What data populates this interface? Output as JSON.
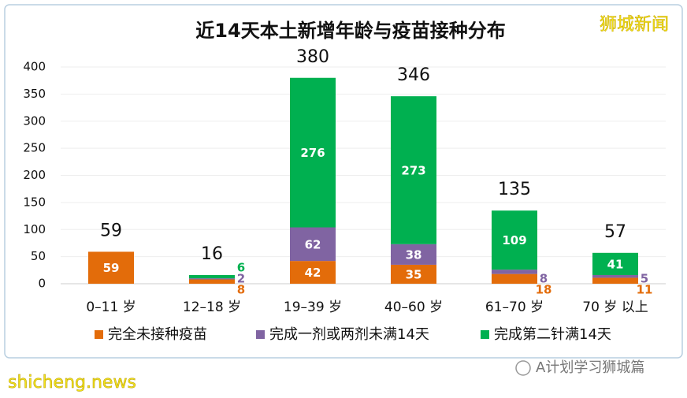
{
  "chart_data": {
    "type": "stacked_bar",
    "title": "近14天本土新增年龄与疫苗接种分布",
    "watermark": "狮城新闻",
    "footer_left": "shicheng.news",
    "footer_right": "A计划学习狮城篇",
    "categories": [
      "0–11 岁",
      "12–18 岁",
      "19–39 岁",
      "40–60 岁",
      "61–70 岁",
      "70 岁 以上"
    ],
    "series": [
      {
        "name": "完全未接种疫苗",
        "color": "#e36c0a",
        "values": [
          59,
          8,
          42,
          35,
          18,
          11
        ]
      },
      {
        "name": "完成一剂或两剂未满14天",
        "color": "#8064a2",
        "values": [
          null,
          2,
          62,
          38,
          8,
          5
        ]
      },
      {
        "name": "完成第二针满14天",
        "color": "#00b050",
        "values": [
          null,
          6,
          276,
          273,
          109,
          41
        ]
      }
    ],
    "totals": [
      59,
      16,
      380,
      346,
      135,
      57
    ],
    "ylim": [
      0,
      400
    ],
    "yticks": [
      0,
      50,
      100,
      150,
      200,
      250,
      300,
      350,
      400
    ],
    "grid": true
  }
}
